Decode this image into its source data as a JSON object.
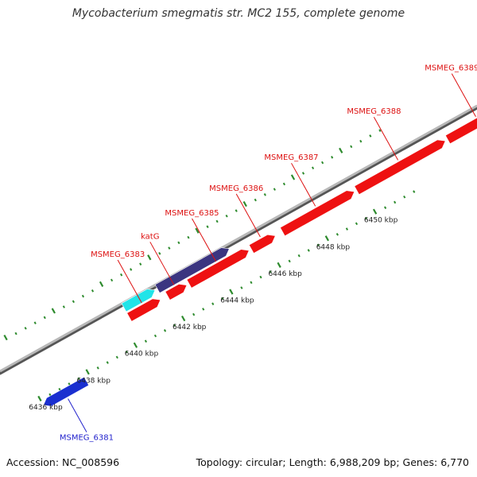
{
  "title": "Mycobacterium smegmatis str. MC2 155, complete genome",
  "footer": {
    "accession": "Accession: NC_008596",
    "summary": "Topology: circular; Length: 6,988,209 bp; Genes: 6,770"
  },
  "colors": {
    "gene_forward": "#ee1111",
    "gene_highlight": "#3b3580",
    "gene_cyan": "#22e4e8",
    "gene_reverse": "#1a2fd0",
    "backbone": "#888888",
    "tick": "#2e8b2e",
    "label_forward": "#dd1111",
    "label_reverse": "#2222cc"
  },
  "axis": {
    "unit": "kbp",
    "ticks": [
      {
        "value": 6436,
        "label": "6436 kbp"
      },
      {
        "value": 6438,
        "label": "6438 kbp"
      },
      {
        "value": 6440,
        "label": "6440 kbp"
      },
      {
        "value": 6442,
        "label": "6442 kbp"
      },
      {
        "value": 6444,
        "label": "6444 kbp"
      },
      {
        "value": 6446,
        "label": "6446 kbp"
      },
      {
        "value": 6448,
        "label": "6448 kbp"
      },
      {
        "value": 6450,
        "label": "6450 kbp"
      }
    ]
  },
  "genes": [
    {
      "label": "MSMEG_6381",
      "strand": "reverse",
      "start": 6436.0,
      "end": 6437.8
    },
    {
      "label": "MSMEG_6383",
      "strand": "forward",
      "start": 6440.3,
      "end": 6441.6
    },
    {
      "label": "katG",
      "strand": "forward",
      "start": 6441.9,
      "end": 6442.7
    },
    {
      "label": "MSMEG_6385",
      "strand": "forward",
      "start": 6442.8,
      "end": 6445.3
    },
    {
      "label": "MSMEG_6386",
      "strand": "forward",
      "start": 6445.4,
      "end": 6446.4
    },
    {
      "label": "MSMEG_6387",
      "strand": "forward",
      "start": 6446.7,
      "end": 6449.7
    },
    {
      "label": "MSMEG_6388",
      "strand": "forward",
      "start": 6449.8,
      "end": 6453.5
    },
    {
      "label": "MSMEG_6389",
      "strand": "forward",
      "start": 6453.6,
      "end": 6456.2
    }
  ]
}
